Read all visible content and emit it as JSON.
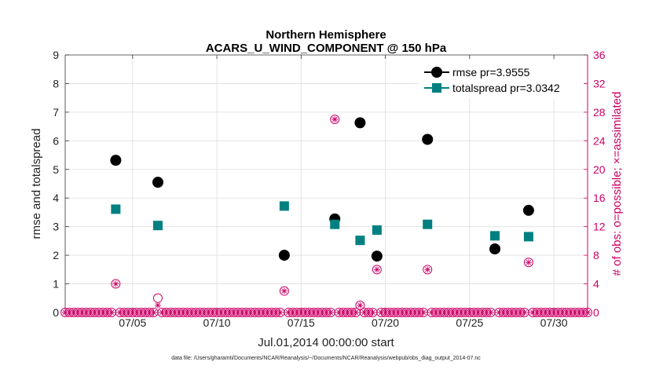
{
  "chart_data": {
    "type": "scatter",
    "title_line1": "Northern Hemisphere",
    "title_line2": "ACARS_U_WIND_COMPONENT @ 150 hPa",
    "xlabel": "Jul.01,2014 00:00:00 start",
    "ylabel_left": "rmse and totalspread",
    "ylabel_right": "# of obs: o=possible; ×=assimilated",
    "footer": "data file: /Users/gharamti/Documents/NCAR/Reanalysis/~/Documents/NCAR/Reanalysis/webpub/obs_diag_output_2014-07.nc",
    "xlim": [
      1,
      32
    ],
    "ylim_left": [
      0,
      9
    ],
    "ylim_right": [
      0,
      36
    ],
    "x_ticks": [
      {
        "x": 5,
        "label": "07/05"
      },
      {
        "x": 10,
        "label": "07/10"
      },
      {
        "x": 15,
        "label": "07/15"
      },
      {
        "x": 20,
        "label": "07/20"
      },
      {
        "x": 25,
        "label": "07/25"
      },
      {
        "x": 30,
        "label": "07/30"
      }
    ],
    "y_ticks_left": [
      "0",
      "1",
      "2",
      "3",
      "4",
      "5",
      "6",
      "7",
      "8",
      "9"
    ],
    "y_ticks_right": [
      "0",
      "4",
      "8",
      "12",
      "16",
      "20",
      "24",
      "28",
      "32",
      "36"
    ],
    "legend": [
      {
        "name": "rmse pr=3.9555",
        "color": "#000000",
        "marker": "circle"
      },
      {
        "name": "totalspread pr=3.0342",
        "color": "#008080",
        "marker": "square"
      }
    ],
    "series": [
      {
        "name": "rmse",
        "color": "#000000",
        "marker": "circle",
        "points": [
          [
            4.0,
            5.32
          ],
          [
            6.5,
            4.55
          ],
          [
            14.0,
            2.0
          ],
          [
            17.0,
            3.27
          ],
          [
            18.5,
            6.63
          ],
          [
            19.5,
            1.97
          ],
          [
            22.5,
            6.05
          ],
          [
            26.5,
            2.22
          ],
          [
            28.5,
            3.57
          ]
        ]
      },
      {
        "name": "totalspread",
        "color": "#008080",
        "marker": "square",
        "points": [
          [
            4.0,
            3.61
          ],
          [
            6.5,
            3.04
          ],
          [
            14.0,
            3.72
          ],
          [
            17.0,
            3.08
          ],
          [
            18.5,
            2.52
          ],
          [
            19.5,
            2.88
          ],
          [
            22.5,
            3.08
          ],
          [
            26.5,
            2.68
          ],
          [
            28.5,
            2.65
          ]
        ]
      }
    ],
    "obs_color": "#cc0066",
    "obs_possible_nonzero": [
      [
        4.0,
        4
      ],
      [
        6.5,
        2
      ],
      [
        14.0,
        3
      ],
      [
        17.0,
        27
      ],
      [
        18.5,
        1
      ],
      [
        19.5,
        6
      ],
      [
        22.5,
        6
      ],
      [
        26.5,
        9
      ],
      [
        28.5,
        7
      ]
    ],
    "obs_assimilated_nonzero": [
      [
        4.0,
        4
      ],
      [
        6.5,
        1
      ],
      [
        14.0,
        3
      ],
      [
        17.0,
        27
      ],
      [
        18.5,
        1
      ],
      [
        19.5,
        6
      ],
      [
        22.5,
        6
      ],
      [
        26.5,
        9
      ],
      [
        28.5,
        7
      ]
    ],
    "obs_zero_step": 0.25,
    "obs_zero_start": 1.0,
    "obs_zero_end": 32.0
  }
}
